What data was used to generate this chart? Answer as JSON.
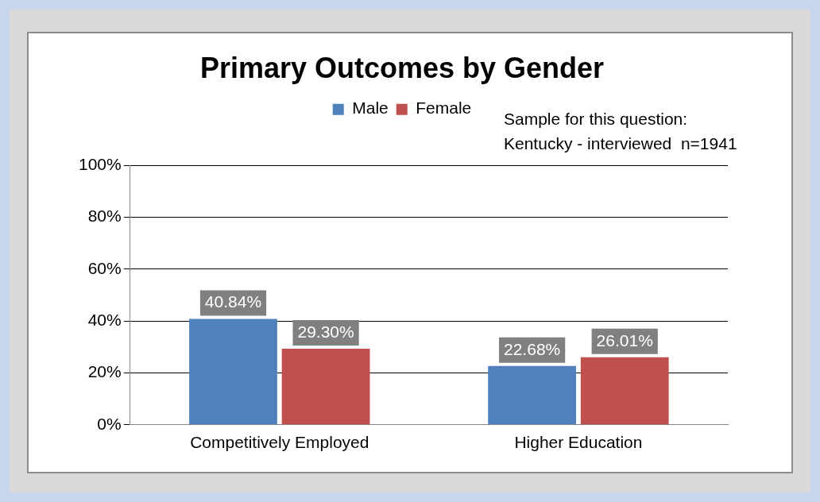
{
  "chart_data": {
    "type": "bar",
    "title": "Primary Outcomes by Gender",
    "categories": [
      "Competitively Employed",
      "Higher Education"
    ],
    "series": [
      {
        "name": "Male",
        "color": "#4f81bd",
        "values": [
          40.84,
          22.68
        ],
        "value_labels": [
          "40.84%",
          "22.68%"
        ]
      },
      {
        "name": "Female",
        "color": "#c0504d",
        "values": [
          29.3,
          26.01
        ],
        "value_labels": [
          "29.30%",
          "26.01%"
        ]
      }
    ],
    "ylim": [
      0,
      100
    ],
    "yticks": [
      {
        "value": 0,
        "label": "0%"
      },
      {
        "value": 20,
        "label": "20%"
      },
      {
        "value": 40,
        "label": "40%"
      },
      {
        "value": 60,
        "label": "60%"
      },
      {
        "value": 80,
        "label": "80%"
      },
      {
        "value": 100,
        "label": "100%"
      }
    ],
    "grid": "y",
    "legend": "top",
    "annotations": [
      "Sample for this question:\nKentucky - interviewed  n=1941"
    ]
  }
}
